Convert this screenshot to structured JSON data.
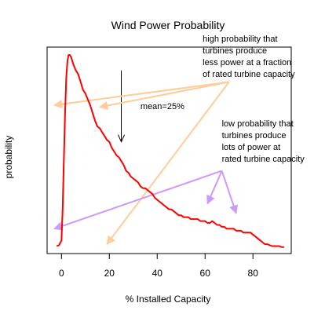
{
  "chart_data": {
    "type": "line",
    "title": "Wind Power Probability",
    "xlabel": "% Installed Capacity",
    "ylabel": "probability",
    "xlim": [
      -6,
      96
    ],
    "ylim": [
      0,
      1
    ],
    "x_ticks": [
      0,
      20,
      40,
      60,
      80
    ],
    "x_tick_labels": [
      "0",
      "20",
      "40",
      "60",
      "80"
    ],
    "grid": false,
    "legend": "none",
    "series": [
      {
        "color": "#ff0000",
        "x": [
          -2,
          -1,
          0,
          0.5,
          1,
          1.5,
          2,
          2.5,
          3,
          3.5,
          4,
          5,
          6,
          7,
          8,
          9,
          10,
          11,
          12,
          13,
          14,
          15,
          16,
          17,
          18,
          19,
          20,
          21,
          22,
          23,
          24,
          25,
          26,
          27,
          28,
          29,
          30,
          31,
          32,
          33,
          34,
          35,
          36,
          37,
          38,
          39,
          40,
          41,
          42,
          43,
          44,
          45,
          46,
          47,
          48,
          49,
          50,
          51,
          52,
          53,
          54,
          55,
          56,
          57,
          58,
          59,
          60,
          61,
          62,
          63,
          64,
          65,
          66,
          67,
          68,
          69,
          70,
          71,
          72,
          73,
          74,
          75,
          76,
          77,
          78,
          79,
          80,
          81,
          82,
          83,
          84,
          85,
          86,
          87,
          88,
          89,
          90,
          91,
          92,
          93
        ],
        "y": [
          0.01,
          0.015,
          0.04,
          0.2,
          0.45,
          0.7,
          0.88,
          0.97,
          1.0,
          1.0,
          0.99,
          0.95,
          0.92,
          0.9,
          0.86,
          0.82,
          0.8,
          0.77,
          0.74,
          0.7,
          0.66,
          0.63,
          0.62,
          0.6,
          0.58,
          0.56,
          0.55,
          0.52,
          0.5,
          0.48,
          0.47,
          0.45,
          0.43,
          0.4,
          0.39,
          0.37,
          0.36,
          0.35,
          0.34,
          0.32,
          0.31,
          0.31,
          0.3,
          0.29,
          0.28,
          0.26,
          0.25,
          0.24,
          0.23,
          0.22,
          0.21,
          0.2,
          0.2,
          0.19,
          0.18,
          0.17,
          0.17,
          0.16,
          0.16,
          0.16,
          0.15,
          0.15,
          0.15,
          0.15,
          0.14,
          0.14,
          0.14,
          0.13,
          0.13,
          0.14,
          0.13,
          0.12,
          0.12,
          0.11,
          0.11,
          0.1,
          0.1,
          0.1,
          0.1,
          0.09,
          0.09,
          0.09,
          0.08,
          0.08,
          0.08,
          0.08,
          0.07,
          0.06,
          0.05,
          0.04,
          0.03,
          0.02,
          0.02,
          0.015,
          0.01,
          0.01,
          0.01,
          0.01,
          0.005,
          0.005
        ]
      }
    ],
    "annotations": [
      {
        "id": "mean",
        "text": "mean=25%",
        "text_pos": [
          33,
          0.72
        ],
        "color": "#000000",
        "arrows": [
          {
            "from": [
              25,
              0.92
            ],
            "to": [
              25,
              0.55
            ]
          }
        ]
      },
      {
        "id": "low-power",
        "text": [
          "high probability that",
          "turbines produce",
          "less power at a fraction",
          "of rated turbine capacity"
        ],
        "text_pos": [
          59,
          1.07
        ],
        "color": "#ffcc99",
        "arrows": [
          {
            "from": [
              70,
              0.86
            ],
            "to": [
              -3,
              0.74
            ]
          },
          {
            "from": [
              70,
              0.86
            ],
            "to": [
              16,
              0.73
            ]
          },
          {
            "from": [
              70,
              0.86
            ],
            "to": [
              19,
              0.02
            ]
          }
        ]
      },
      {
        "id": "high-power",
        "text": [
          "low probability that",
          "turbines produce",
          "lots of power at",
          "rated turbine capacity"
        ],
        "text_pos": [
          67,
          0.63
        ],
        "color": "#cc99ff",
        "arrows": [
          {
            "from": [
              67,
              0.4
            ],
            "to": [
              -3,
              0.1
            ]
          },
          {
            "from": [
              67,
              0.4
            ],
            "to": [
              61,
              0.23
            ]
          },
          {
            "from": [
              67,
              0.4
            ],
            "to": [
              73,
              0.18
            ]
          }
        ]
      }
    ]
  }
}
